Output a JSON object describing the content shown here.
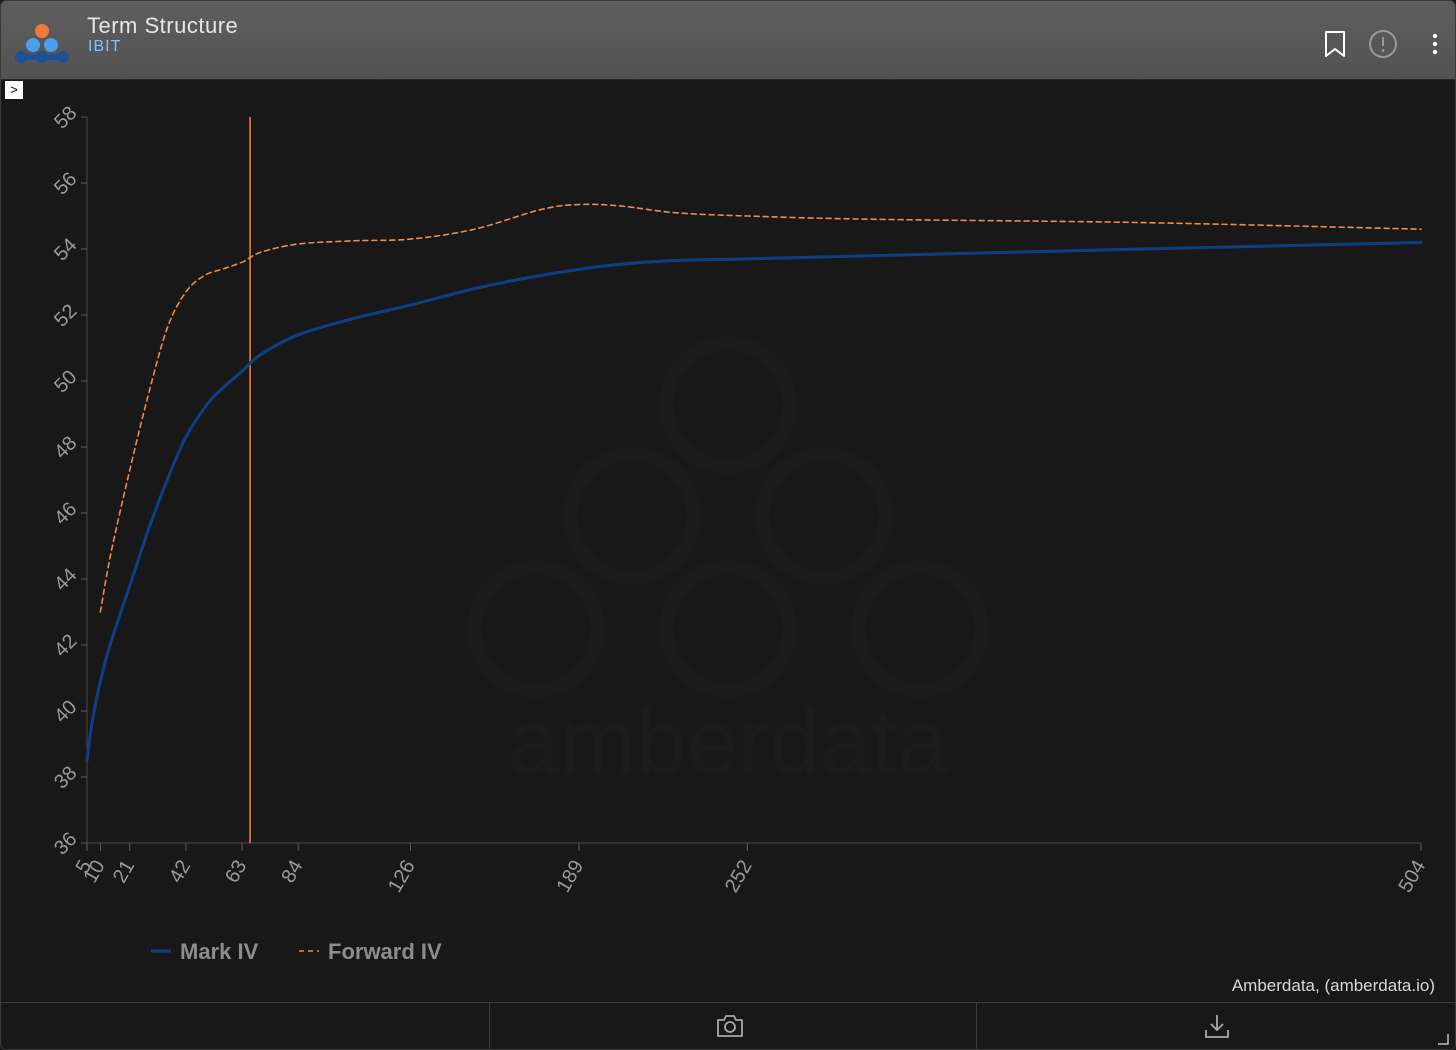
{
  "header": {
    "title": "Term Structure",
    "subtitle": "IBIT",
    "icons": [
      "bookmark-icon",
      "alert-icon",
      "more-vertical-icon"
    ]
  },
  "toggle_label": ">",
  "credit": "Amberdata, (amberdata.io)",
  "watermark": "amberdata",
  "footer": {
    "icons": [
      "camera-icon",
      "download-icon"
    ]
  },
  "colors": {
    "mark_iv": "#0e3f86",
    "forward_iv": "#f08a4b",
    "marker_line": "#f27a2e",
    "subtitle": "#7ec3ff"
  },
  "chart_data": {
    "type": "line",
    "title": "",
    "xlabel": "",
    "ylabel": "",
    "ylim": [
      36,
      58
    ],
    "yticks": [
      36,
      38,
      40,
      42,
      44,
      46,
      48,
      50,
      52,
      54,
      56,
      58
    ],
    "xlim": [
      5,
      504
    ],
    "xticks": [
      5,
      10,
      21,
      42,
      63,
      84,
      126,
      189,
      252,
      504
    ],
    "vertical_marker_x": 66,
    "legend_position": "bottom-left",
    "series": [
      {
        "name": "Mark IV",
        "style": "solid",
        "x": [
          5,
          7,
          10,
          14,
          21,
          28,
          35,
          42,
          50,
          56,
          63,
          70,
          84,
          105,
          126,
          150,
          175,
          200,
          225,
          252,
          300,
          400,
          504
        ],
        "y": [
          38.5,
          39.7,
          40.9,
          42.1,
          43.8,
          45.5,
          47.0,
          48.3,
          49.3,
          49.8,
          50.3,
          50.8,
          51.4,
          51.9,
          52.3,
          52.8,
          53.2,
          53.5,
          53.65,
          53.7,
          53.8,
          54.0,
          54.2
        ]
      },
      {
        "name": "Forward IV",
        "style": "dashed",
        "x": [
          10,
          14,
          21,
          28,
          35,
          42,
          49,
          56,
          63,
          70,
          84,
          105,
          126,
          150,
          175,
          190,
          205,
          225,
          252,
          300,
          400,
          504
        ],
        "y": [
          43.0,
          44.8,
          47.3,
          49.6,
          51.6,
          52.7,
          53.2,
          53.4,
          53.6,
          53.9,
          54.15,
          54.25,
          54.3,
          54.6,
          55.2,
          55.35,
          55.3,
          55.1,
          55.0,
          54.9,
          54.8,
          54.6
        ]
      }
    ]
  }
}
